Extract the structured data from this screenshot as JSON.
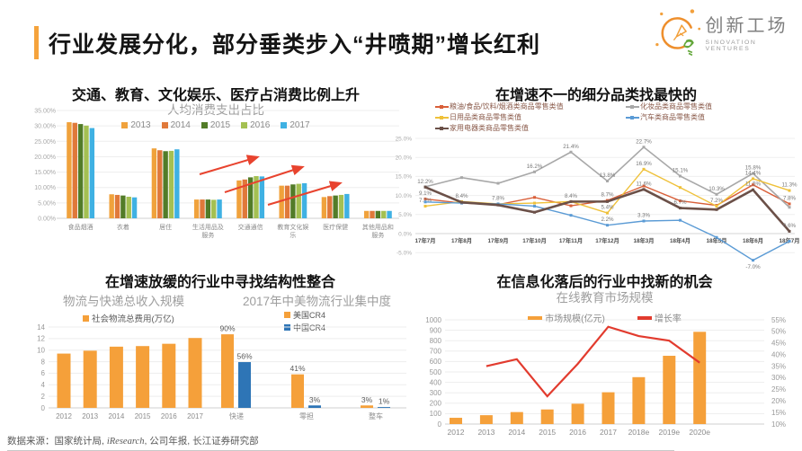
{
  "header": {
    "title": "行业发展分化，部分垂类步入“井喷期”增长红利",
    "logo": {
      "name": "创新工场",
      "subtitle": "SINOVATION VENTURES"
    }
  },
  "footer": {
    "source_prefix": "数据来源：国家统计局, ",
    "source_italic": "iResearch",
    "source_suffix": ", 公司年报, 长江证券研究部"
  },
  "colors": {
    "accent_orange": "#F5A33C",
    "arrow_red": "#E8432E",
    "bar_orange": "#F5A03A",
    "bar_blue": "#2E75B6",
    "line_red": "#E23B2E",
    "axis_gray": "#999999",
    "subtitle_gray": "#9e9e9e"
  },
  "chart_data": [
    {
      "type": "bar",
      "title": "交通、教育、文化娱乐、医疗占消费比例上升",
      "subtitle": "人均消费支出占比",
      "categories": [
        "食品烟酒",
        "衣着",
        "居住",
        "生活用品及服务",
        "交通通信",
        "教育文化娱乐",
        "医疗保健",
        "其他用品和服务"
      ],
      "series": [
        {
          "name": "2013",
          "color": "#F0A23C",
          "values": [
            31.2,
            7.8,
            22.7,
            6.1,
            12.3,
            10.6,
            6.9,
            2.4
          ]
        },
        {
          "name": "2014",
          "color": "#E0793A",
          "values": [
            31.0,
            7.6,
            22.1,
            6.1,
            12.6,
            10.6,
            7.2,
            2.4
          ]
        },
        {
          "name": "2015",
          "color": "#527C28",
          "values": [
            30.6,
            7.4,
            21.8,
            6.1,
            13.3,
            11.0,
            7.4,
            2.4
          ]
        },
        {
          "name": "2016",
          "color": "#A4C052",
          "values": [
            30.1,
            7.0,
            21.9,
            6.0,
            13.7,
            11.2,
            7.6,
            2.4
          ]
        },
        {
          "name": "2017",
          "color": "#3FB1E3",
          "values": [
            29.3,
            6.8,
            22.4,
            6.1,
            13.6,
            11.4,
            7.9,
            2.4
          ]
        }
      ],
      "ylim": [
        0,
        35
      ],
      "ytick_step": 5,
      "ytick_format": "35.00%",
      "annotations": [
        "红色上升箭头×3：交通通信、教育文化娱乐、医疗保健占比上升"
      ]
    },
    {
      "type": "line",
      "title": "在增速不一的细分品类找最快的",
      "categories": [
        "17年7月",
        "17年8月",
        "17年9月",
        "17年10月",
        "17年11月",
        "17年12月",
        "18年3月",
        "18年4月",
        "18年5月",
        "18年6月",
        "18年7月"
      ],
      "ylim": [
        -10,
        25
      ],
      "ytick_step": 5,
      "series": [
        {
          "name": "粮油/食品/饮料/烟酒类商品零售类值",
          "color": "#D95F39",
          "values": [
            9.1,
            8.0,
            7.6,
            9.5,
            7.3,
            8.7,
            12.5,
            8.6,
            7.4,
            12.8,
            7.8
          ],
          "labels": [
            "9.1%",
            null,
            null,
            null,
            null,
            "8.7%",
            null,
            null,
            null,
            null,
            "7.8%"
          ]
        },
        {
          "name": "化妆品类商品零售类值",
          "color": "#A8A8A8",
          "values": [
            12.3,
            14.7,
            13.2,
            16.2,
            21.4,
            13.8,
            22.7,
            15.1,
            10.3,
            15.8,
            6.9
          ],
          "labels": [
            null,
            null,
            null,
            "16.2%",
            "21.4%",
            "13.8%",
            "22.7%",
            "15.1%",
            "10.3%",
            "15.8%",
            null
          ]
        },
        {
          "name": "日用品类商品零售类值",
          "color": "#EFC13A",
          "values": [
            7.2,
            8.4,
            7.8,
            8.0,
            8.4,
            5.4,
            16.9,
            12.1,
            7.2,
            14.4,
            11.3
          ],
          "labels": [
            "7.2%",
            "8.4%",
            "7.8%",
            null,
            null,
            "5.4%",
            "16.9%",
            null,
            "7.2%",
            "14.4%",
            "11.3%"
          ]
        },
        {
          "name": "汽车类商品零售类值",
          "color": "#5B9BD5",
          "values": [
            8.3,
            8.0,
            7.8,
            7.2,
            4.8,
            2.2,
            3.3,
            3.5,
            -1.0,
            -7.0,
            -2.0
          ],
          "labels": [
            null,
            null,
            null,
            null,
            null,
            "2.2%",
            "3.3%",
            null,
            null,
            "-7.0%",
            null
          ]
        },
        {
          "name": "家用电器类商品零售类值",
          "color": "#6B5048",
          "values": [
            12.2,
            8.2,
            7.5,
            5.6,
            8.4,
            8.4,
            11.6,
            6.7,
            6.3,
            11.5,
            0.6
          ],
          "labels": [
            "12.2%",
            null,
            null,
            null,
            "8.4%",
            null,
            "11.6%",
            "6.7%",
            null,
            "11.5%",
            "0.6%"
          ]
        }
      ]
    },
    {
      "type": "group",
      "title": "在增速放缓的行业中寻找结构性整合",
      "sub_charts": [
        {
          "type": "bar",
          "title": "物流与快递总收入规模",
          "legend": "社会物流总费用(万亿)",
          "color": "#F5A03A",
          "categories": [
            "2012",
            "2013",
            "2014",
            "2015",
            "2016",
            "2017"
          ],
          "values": [
            9.4,
            9.9,
            10.6,
            10.7,
            11.1,
            12.1
          ],
          "ylim": [
            0,
            14
          ],
          "ytick_step": 2
        },
        {
          "type": "bar",
          "title": "2017年中美物流行业集中度",
          "categories": [
            "快递",
            "零担",
            "整车"
          ],
          "series": [
            {
              "name": "美国CR4",
              "color": "#F5A03A",
              "values": [
                90,
                41,
                3
              ],
              "labels": [
                "90%",
                "41%",
                "3%"
              ]
            },
            {
              "name": "中国CR4",
              "color": "#2E75B6",
              "values": [
                56,
                3,
                1
              ],
              "labels": [
                "56%",
                "3%",
                "1%"
              ]
            }
          ],
          "ylim": [
            0,
            100
          ]
        }
      ]
    },
    {
      "type": "combo",
      "title": "在信息化落后的行业中找新的机会",
      "subtitle": "在线教育市场规模",
      "categories": [
        "2012",
        "2013",
        "2014",
        "2015",
        "2016",
        "2017",
        "2018e",
        "2019e",
        "2020e"
      ],
      "bar_series": {
        "name": "市场规模(亿元)",
        "color": "#F5A03A",
        "values": [
          60,
          85,
          115,
          140,
          195,
          305,
          450,
          655,
          885
        ]
      },
      "line_series": {
        "name": "增长率",
        "color": "#E23B2E",
        "values": [
          null,
          35,
          38,
          22,
          36,
          52,
          48,
          46,
          36.5
        ]
      },
      "ylim_left": [
        0,
        1000
      ],
      "ytick_step_left": 100,
      "ylim_right_pct": [
        10,
        55
      ],
      "ytick_step_right": 5
    }
  ]
}
